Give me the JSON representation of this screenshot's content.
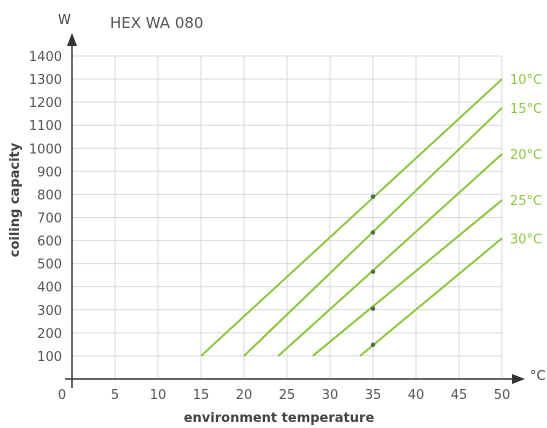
{
  "chart_data": {
    "type": "line",
    "title": "HEX WA 080",
    "xlabel": "environment temperature",
    "ylabel": "coiling capacity",
    "x_unit": "°C",
    "y_unit": "W",
    "xlim": [
      0,
      50
    ],
    "ylim": [
      0,
      1400
    ],
    "x_ticks": [
      "0",
      "5",
      "10",
      "15",
      "20",
      "25",
      "30",
      "35",
      "40",
      "45",
      "50"
    ],
    "y_ticks": [
      "100",
      "200",
      "300",
      "400",
      "500",
      "600",
      "700",
      "800",
      "900",
      "1000",
      "1100",
      "1200",
      "1300",
      "1400"
    ],
    "grid": true,
    "line_color": "#8cc63f",
    "marker_color": "#4d6b4d",
    "series": [
      {
        "name": "10°C",
        "points": [
          [
            15,
            100
          ],
          [
            50,
            1300
          ]
        ],
        "marker": [
          35,
          790
        ]
      },
      {
        "name": "15°C",
        "points": [
          [
            20,
            100
          ],
          [
            50,
            1175
          ]
        ],
        "marker": [
          35,
          635
        ]
      },
      {
        "name": "20°C",
        "points": [
          [
            24,
            100
          ],
          [
            50,
            975
          ]
        ],
        "marker": [
          35,
          465
        ]
      },
      {
        "name": "25°C",
        "points": [
          [
            28,
            100
          ],
          [
            50,
            775
          ]
        ],
        "marker": [
          35,
          305
        ]
      },
      {
        "name": "30°C",
        "points": [
          [
            33.5,
            100
          ],
          [
            50,
            610
          ]
        ],
        "marker": [
          35,
          148
        ]
      }
    ]
  }
}
